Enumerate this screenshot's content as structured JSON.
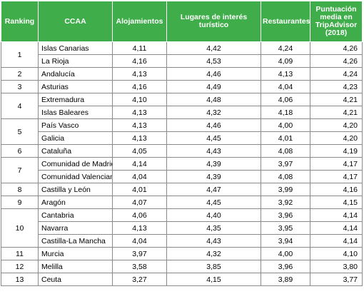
{
  "headers": {
    "ranking": "Ranking",
    "ccaa": "CCAA",
    "alojamientos": "Alojamientos",
    "lugares": "Lugares de interés turístico",
    "restaurantes": "Restaurantes",
    "puntuacion": "Puntuación media en TripAdvisor (2018)"
  },
  "groups": [
    {
      "ranking": "1",
      "rows": [
        {
          "ccaa": "Islas Canarias",
          "alojamientos": "4,11",
          "lugares": "4,42",
          "restaurantes": "4,24",
          "puntuacion": "4,26"
        },
        {
          "ccaa": "La Rioja",
          "alojamientos": "4,16",
          "lugares": "4,53",
          "restaurantes": "4,09",
          "puntuacion": "4,26"
        }
      ]
    },
    {
      "ranking": "2",
      "rows": [
        {
          "ccaa": "Andalucía",
          "alojamientos": "4,13",
          "lugares": "4,46",
          "restaurantes": "4,13",
          "puntuacion": "4,24"
        }
      ]
    },
    {
      "ranking": "3",
      "rows": [
        {
          "ccaa": "Asturias",
          "alojamientos": "4,16",
          "lugares": "4,49",
          "restaurantes": "4,04",
          "puntuacion": "4,23"
        }
      ]
    },
    {
      "ranking": "4",
      "rows": [
        {
          "ccaa": "Extremadura",
          "alojamientos": "4,10",
          "lugares": "4,48",
          "restaurantes": "4,06",
          "puntuacion": "4,21"
        },
        {
          "ccaa": "Islas Baleares",
          "alojamientos": "4,13",
          "lugares": "4,32",
          "restaurantes": "4,18",
          "puntuacion": "4,21"
        }
      ]
    },
    {
      "ranking": "5",
      "rows": [
        {
          "ccaa": "País Vasco",
          "alojamientos": "4,13",
          "lugares": "4,46",
          "restaurantes": "4,00",
          "puntuacion": "4,20"
        },
        {
          "ccaa": "Galicia",
          "alojamientos": "4,13",
          "lugares": "4,45",
          "restaurantes": "4,01",
          "puntuacion": "4,20"
        }
      ]
    },
    {
      "ranking": "6",
      "rows": [
        {
          "ccaa": "Cataluña",
          "alojamientos": "4,05",
          "lugares": "4,43",
          "restaurantes": "4,08",
          "puntuacion": "4,19"
        }
      ]
    },
    {
      "ranking": "7",
      "rows": [
        {
          "ccaa": "Comunidad de Madrid",
          "alojamientos": "4,14",
          "lugares": "4,39",
          "restaurantes": "3,97",
          "puntuacion": "4,17"
        },
        {
          "ccaa": "Comunidad Valenciana",
          "alojamientos": "4,04",
          "lugares": "4,39",
          "restaurantes": "4,08",
          "puntuacion": "4,17"
        }
      ]
    },
    {
      "ranking": "8",
      "rows": [
        {
          "ccaa": "Castilla y León",
          "alojamientos": "4,01",
          "lugares": "4,47",
          "restaurantes": "3,99",
          "puntuacion": "4,16"
        }
      ]
    },
    {
      "ranking": "9",
      "rows": [
        {
          "ccaa": "Aragón",
          "alojamientos": "4,07",
          "lugares": "4,45",
          "restaurantes": "3,92",
          "puntuacion": "4,15"
        }
      ]
    },
    {
      "ranking": "10",
      "rows": [
        {
          "ccaa": "Cantabria",
          "alojamientos": "4,06",
          "lugares": "4,40",
          "restaurantes": "3,96",
          "puntuacion": "4,14"
        },
        {
          "ccaa": "Navarra",
          "alojamientos": "4,13",
          "lugares": "4,35",
          "restaurantes": "3,95",
          "puntuacion": "4,14"
        },
        {
          "ccaa": "Castilla-La Mancha",
          "alojamientos": "4,04",
          "lugares": "4,43",
          "restaurantes": "3,94",
          "puntuacion": "4,14"
        }
      ]
    },
    {
      "ranking": "11",
      "rows": [
        {
          "ccaa": "Murcia",
          "alojamientos": "3,97",
          "lugares": "4,32",
          "restaurantes": "4,00",
          "puntuacion": "4,10"
        }
      ]
    },
    {
      "ranking": "12",
      "rows": [
        {
          "ccaa": "Melilla",
          "alojamientos": "3,58",
          "lugares": "3,85",
          "restaurantes": "3,96",
          "puntuacion": "3,80"
        }
      ]
    },
    {
      "ranking": "13",
      "rows": [
        {
          "ccaa": "Ceuta",
          "alojamientos": "3,27",
          "lugares": "4,15",
          "restaurantes": "3,89",
          "puntuacion": "3,77"
        }
      ]
    }
  ]
}
